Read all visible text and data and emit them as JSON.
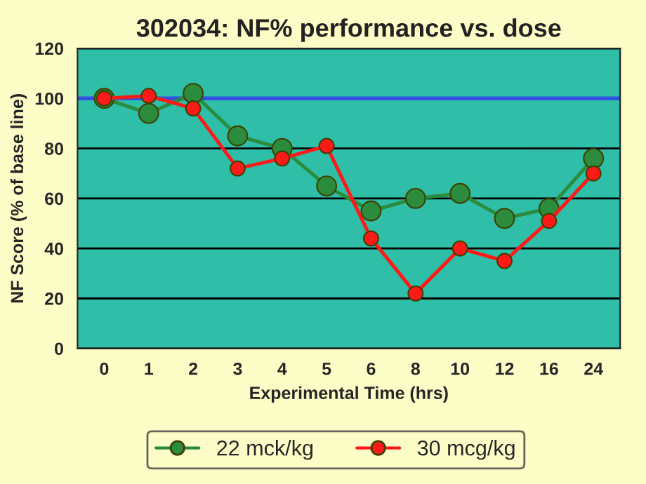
{
  "chart_data": {
    "type": "line",
    "title": "302034: NF% performance vs. dose",
    "xlabel": "Experimental Time (hrs)",
    "ylabel": "NF Score (% of base line)",
    "categories": [
      "0",
      "1",
      "2",
      "3",
      "4",
      "5",
      "6",
      "8",
      "10",
      "12",
      "16",
      "24"
    ],
    "series": [
      {
        "name": "22 mck/kg",
        "color": "#2a8c3c",
        "values": [
          100,
          94,
          102,
          85,
          80,
          65,
          55,
          60,
          62,
          52,
          56,
          76
        ]
      },
      {
        "name": "30 mcg/kg",
        "color": "#ff1a1a",
        "values": [
          100,
          101,
          96,
          72,
          76,
          81,
          44,
          22,
          40,
          35,
          51,
          70
        ]
      }
    ],
    "ylim": [
      0,
      120
    ],
    "yticks": [
      0,
      20,
      40,
      60,
      80,
      100,
      120
    ],
    "grid": "y",
    "legend": "bottom",
    "marker": "circle",
    "line_style": "solid",
    "ref_lines": [
      {
        "axis": "y",
        "value": 100,
        "color": "#3050e0"
      }
    ]
  }
}
